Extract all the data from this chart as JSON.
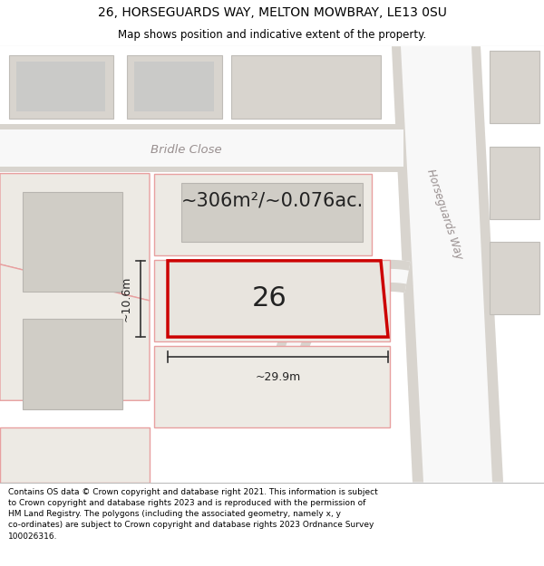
{
  "title_line1": "26, HORSEGUARDS WAY, MELTON MOWBRAY, LE13 0SU",
  "title_line2": "Map shows position and indicative extent of the property.",
  "footer_text": "Contains OS data © Crown copyright and database right 2021. This information is subject to Crown copyright and database rights 2023 and is reproduced with the permission of HM Land Registry. The polygons (including the associated geometry, namely x, y co-ordinates) are subject to Crown copyright and database rights 2023 Ordnance Survey 100026316.",
  "area_text": "~306m²/~0.076ac.",
  "plot_number": "26",
  "dim_width": "~29.9m",
  "dim_height": "~10.6m",
  "street_horseguards": "Horseguards Way",
  "street_bridle": "Bridle Close",
  "map_bg": "#eeebe6",
  "plot_fill": "#e8e4de",
  "plot_border": "#cc0000",
  "road_white": "#f8f8f8",
  "parcel_pink": "#f0c0c0",
  "parcel_grey_fill": "#d8d4ce",
  "parcel_grey_edge": "#c0bdb8",
  "title_bg": "#ffffff",
  "footer_bg": "#ffffff",
  "dim_color": "#333333",
  "text_dark": "#222222",
  "street_text_color": "#999090"
}
